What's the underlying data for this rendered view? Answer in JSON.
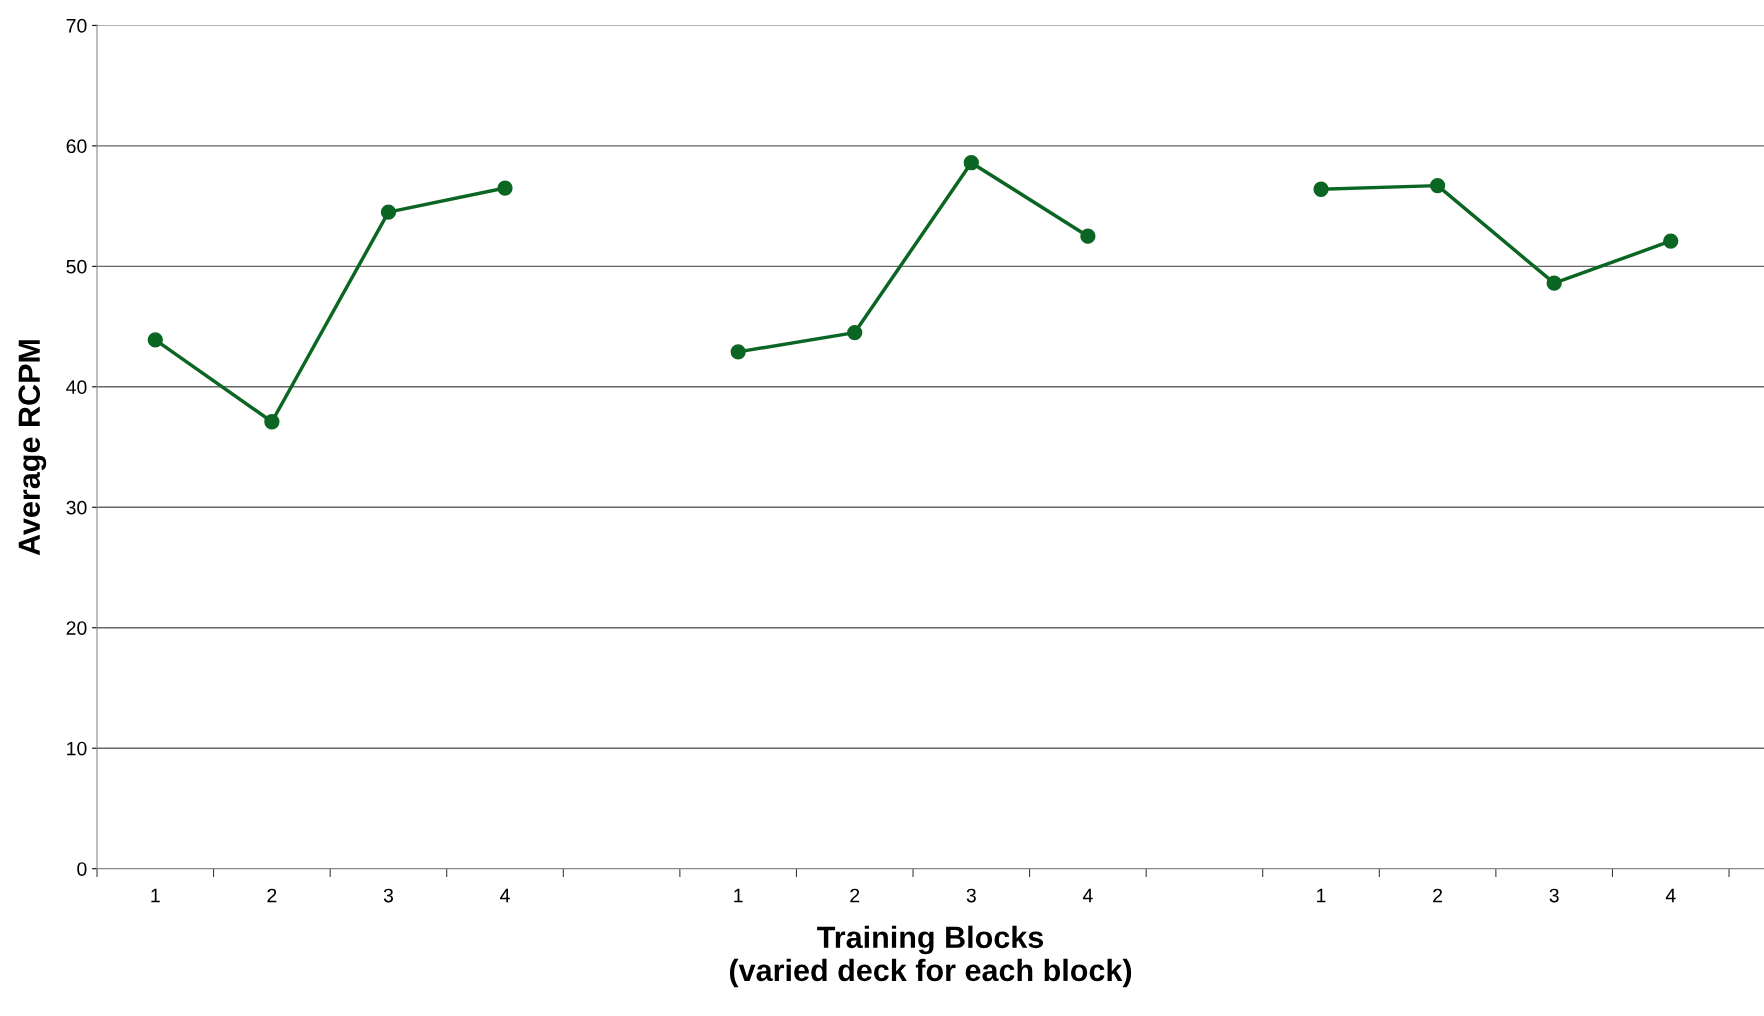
{
  "chart_data": {
    "type": "line",
    "xlabel": "Training Blocks\n(varied deck for each block)",
    "ylabel": "Average RCPM",
    "categories": [
      "1",
      "2",
      "3",
      "4",
      null,
      "1",
      "2",
      "3",
      "4",
      null,
      "1",
      "2",
      "3",
      "4"
    ],
    "series": [
      {
        "color": "#0b6623",
        "values": [
          43.9,
          37.1,
          54.5,
          56.5,
          null,
          42.9,
          44.5,
          58.6,
          52.5,
          null,
          56.4,
          56.7,
          48.6,
          52.1
        ]
      }
    ],
    "ylim": [
      0,
      70
    ],
    "yticks": [
      0,
      10,
      20,
      30,
      40,
      50,
      60,
      70
    ],
    "grid": "y",
    "marker": "circle",
    "line_style": "solid"
  }
}
